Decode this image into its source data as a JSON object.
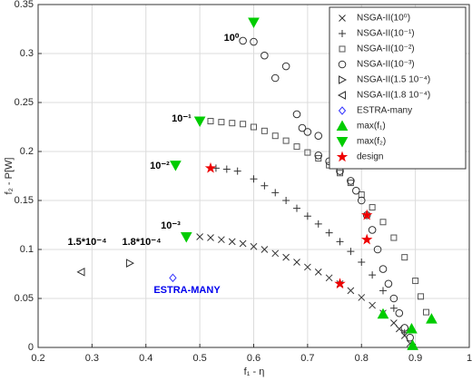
{
  "chart_data": {
    "type": "scatter",
    "x_label": "f₁ - η",
    "y_label": "f₂ - P[W]",
    "xlim": [
      0.2,
      1
    ],
    "xticks": [
      0.2,
      0.3,
      0.4,
      0.5,
      0.6,
      0.7,
      0.8,
      0.9,
      1
    ],
    "ylim": [
      0,
      0.35
    ],
    "yticks": [
      0,
      0.05,
      0.1,
      0.15,
      0.2,
      0.25,
      0.3,
      0.35
    ],
    "grid": true,
    "legend": "upper right",
    "annotations": [
      "10⁰",
      "10⁻¹",
      "10⁻²",
      "10⁻³",
      "1.5*10⁻⁴",
      "1.8*10⁻⁴",
      "ESTRA-MANY"
    ],
    "series": [
      {
        "name": "NSGA-II(10⁰)",
        "marker": "x",
        "color": "#333333",
        "x": [
          0.5,
          0.52,
          0.54,
          0.56,
          0.58,
          0.6,
          0.62,
          0.64,
          0.66,
          0.68,
          0.7,
          0.72,
          0.74,
          0.76,
          0.78,
          0.8,
          0.82,
          0.84,
          0.86,
          0.87,
          0.88,
          0.89
        ],
        "values": [
          0.113,
          0.112,
          0.11,
          0.108,
          0.106,
          0.103,
          0.1,
          0.096,
          0.092,
          0.087,
          0.082,
          0.077,
          0.071,
          0.065,
          0.058,
          0.051,
          0.043,
          0.035,
          0.025,
          0.019,
          0.012,
          0.004
        ]
      },
      {
        "name": "NSGA-II(10⁻¹)",
        "marker": "+",
        "color": "#333333",
        "x": [
          0.53,
          0.55,
          0.57,
          0.6,
          0.62,
          0.64,
          0.66,
          0.68,
          0.7,
          0.72,
          0.74,
          0.76,
          0.78,
          0.8,
          0.82,
          0.84,
          0.86,
          0.88
        ],
        "values": [
          0.183,
          0.182,
          0.18,
          0.172,
          0.165,
          0.158,
          0.15,
          0.142,
          0.134,
          0.126,
          0.117,
          0.108,
          0.098,
          0.087,
          0.074,
          0.058,
          0.04,
          0.015
        ]
      },
      {
        "name": "NSGA-II(10⁻²)",
        "marker": "square",
        "color": "#555555",
        "x": [
          0.52,
          0.54,
          0.56,
          0.58,
          0.6,
          0.62,
          0.64,
          0.66,
          0.68,
          0.7,
          0.72,
          0.74,
          0.76,
          0.78,
          0.8,
          0.82,
          0.84,
          0.86,
          0.88,
          0.9,
          0.91,
          0.92
        ],
        "values": [
          0.231,
          0.23,
          0.229,
          0.228,
          0.225,
          0.221,
          0.216,
          0.211,
          0.205,
          0.199,
          0.193,
          0.186,
          0.178,
          0.168,
          0.156,
          0.143,
          0.128,
          0.112,
          0.092,
          0.068,
          0.052,
          0.036
        ]
      },
      {
        "name": "NSGA-II(10⁻³)",
        "marker": "circle",
        "color": "#333333",
        "x": [
          0.58,
          0.6,
          0.62,
          0.64,
          0.66,
          0.68,
          0.69,
          0.7,
          0.72,
          0.72,
          0.74,
          0.76,
          0.78,
          0.79,
          0.8,
          0.81,
          0.82,
          0.83,
          0.84,
          0.85,
          0.86,
          0.87,
          0.88,
          0.89
        ],
        "values": [
          0.313,
          0.312,
          0.298,
          0.275,
          0.287,
          0.238,
          0.224,
          0.22,
          0.216,
          0.196,
          0.19,
          0.18,
          0.17,
          0.16,
          0.15,
          0.135,
          0.12,
          0.1,
          0.08,
          0.065,
          0.05,
          0.035,
          0.02,
          0.01
        ]
      },
      {
        "name": "NSGA-II(1.5 10⁻⁴)",
        "marker": "triangle-right",
        "color": "#333333",
        "x": [
          0.37
        ],
        "values": [
          0.086
        ]
      },
      {
        "name": "NSGA-II(1.8 10⁻⁴)",
        "marker": "triangle-left",
        "color": "#333333",
        "x": [
          0.28
        ],
        "values": [
          0.077
        ]
      },
      {
        "name": "ESTRA-many",
        "marker": "diamond",
        "color": "#3333ff",
        "x": [
          0.45
        ],
        "values": [
          0.071
        ]
      },
      {
        "name": "max(f₁)",
        "marker": "triangle-up",
        "color": "#00cc00",
        "x": [
          0.84,
          0.893,
          0.93,
          0.895
        ],
        "values": [
          0.034,
          0.019,
          0.029,
          0.002
        ]
      },
      {
        "name": "max(f₂)",
        "marker": "triangle-down",
        "color": "#00cc00",
        "x": [
          0.6,
          0.5,
          0.455,
          0.475
        ],
        "values": [
          0.332,
          0.231,
          0.186,
          0.113
        ]
      },
      {
        "name": "design",
        "marker": "star",
        "color": "#ee0000",
        "x": [
          0.52,
          0.76,
          0.81,
          0.81
        ],
        "values": [
          0.183,
          0.065,
          0.135,
          0.11
        ]
      }
    ]
  }
}
